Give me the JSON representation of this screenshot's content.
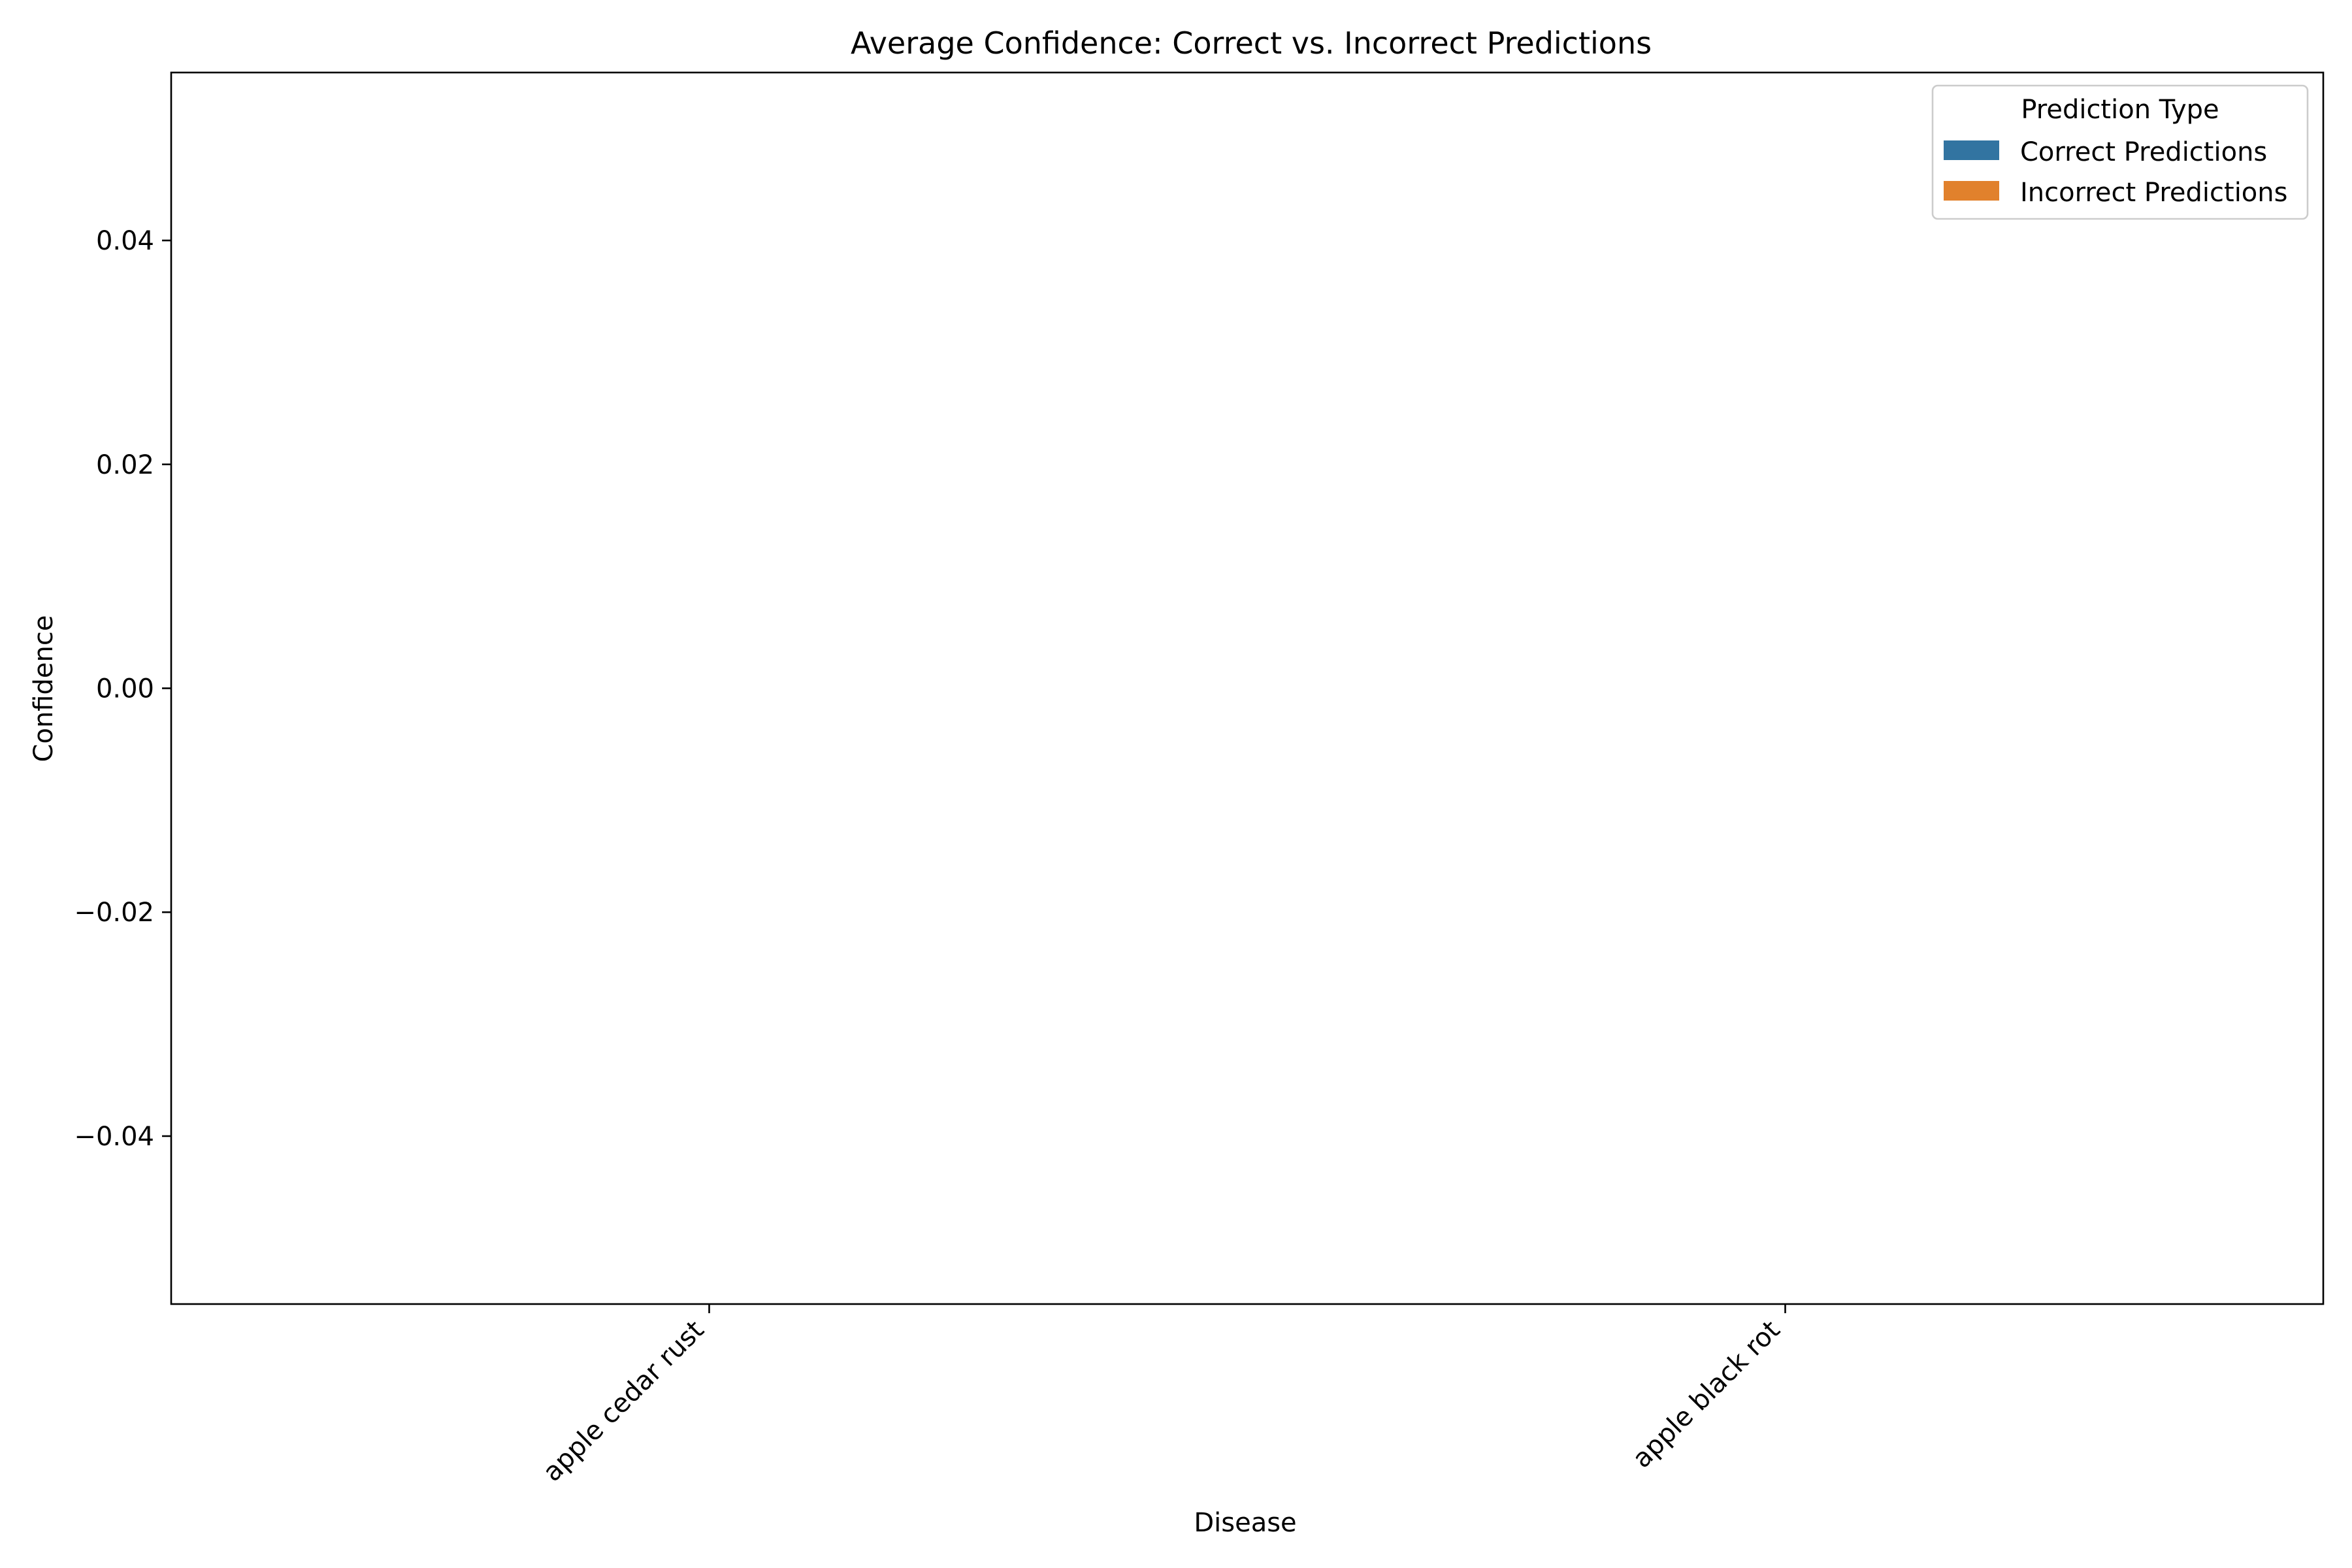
{
  "chart_data": {
    "type": "bar",
    "title": "Average Confidence: Correct vs. Incorrect Predictions",
    "xlabel": "Disease",
    "ylabel": "Confidence",
    "categories": [
      "apple cedar rust",
      "apple black rot"
    ],
    "series": [
      {
        "name": "Correct Predictions",
        "color": "#3274a1",
        "values": [
          0,
          0
        ]
      },
      {
        "name": "Incorrect Predictions",
        "color": "#e1812c",
        "values": [
          0,
          0
        ]
      }
    ],
    "ylim": [
      -0.055,
      0.055
    ],
    "yticks": [
      -0.04,
      -0.02,
      0.0,
      0.02,
      0.04
    ],
    "ytick_labels": [
      "−0.04",
      "−0.02",
      "0.00",
      "0.02",
      "0.04"
    ],
    "grid": false,
    "legend": {
      "title": "Prediction Type",
      "placement": "top-right"
    }
  }
}
